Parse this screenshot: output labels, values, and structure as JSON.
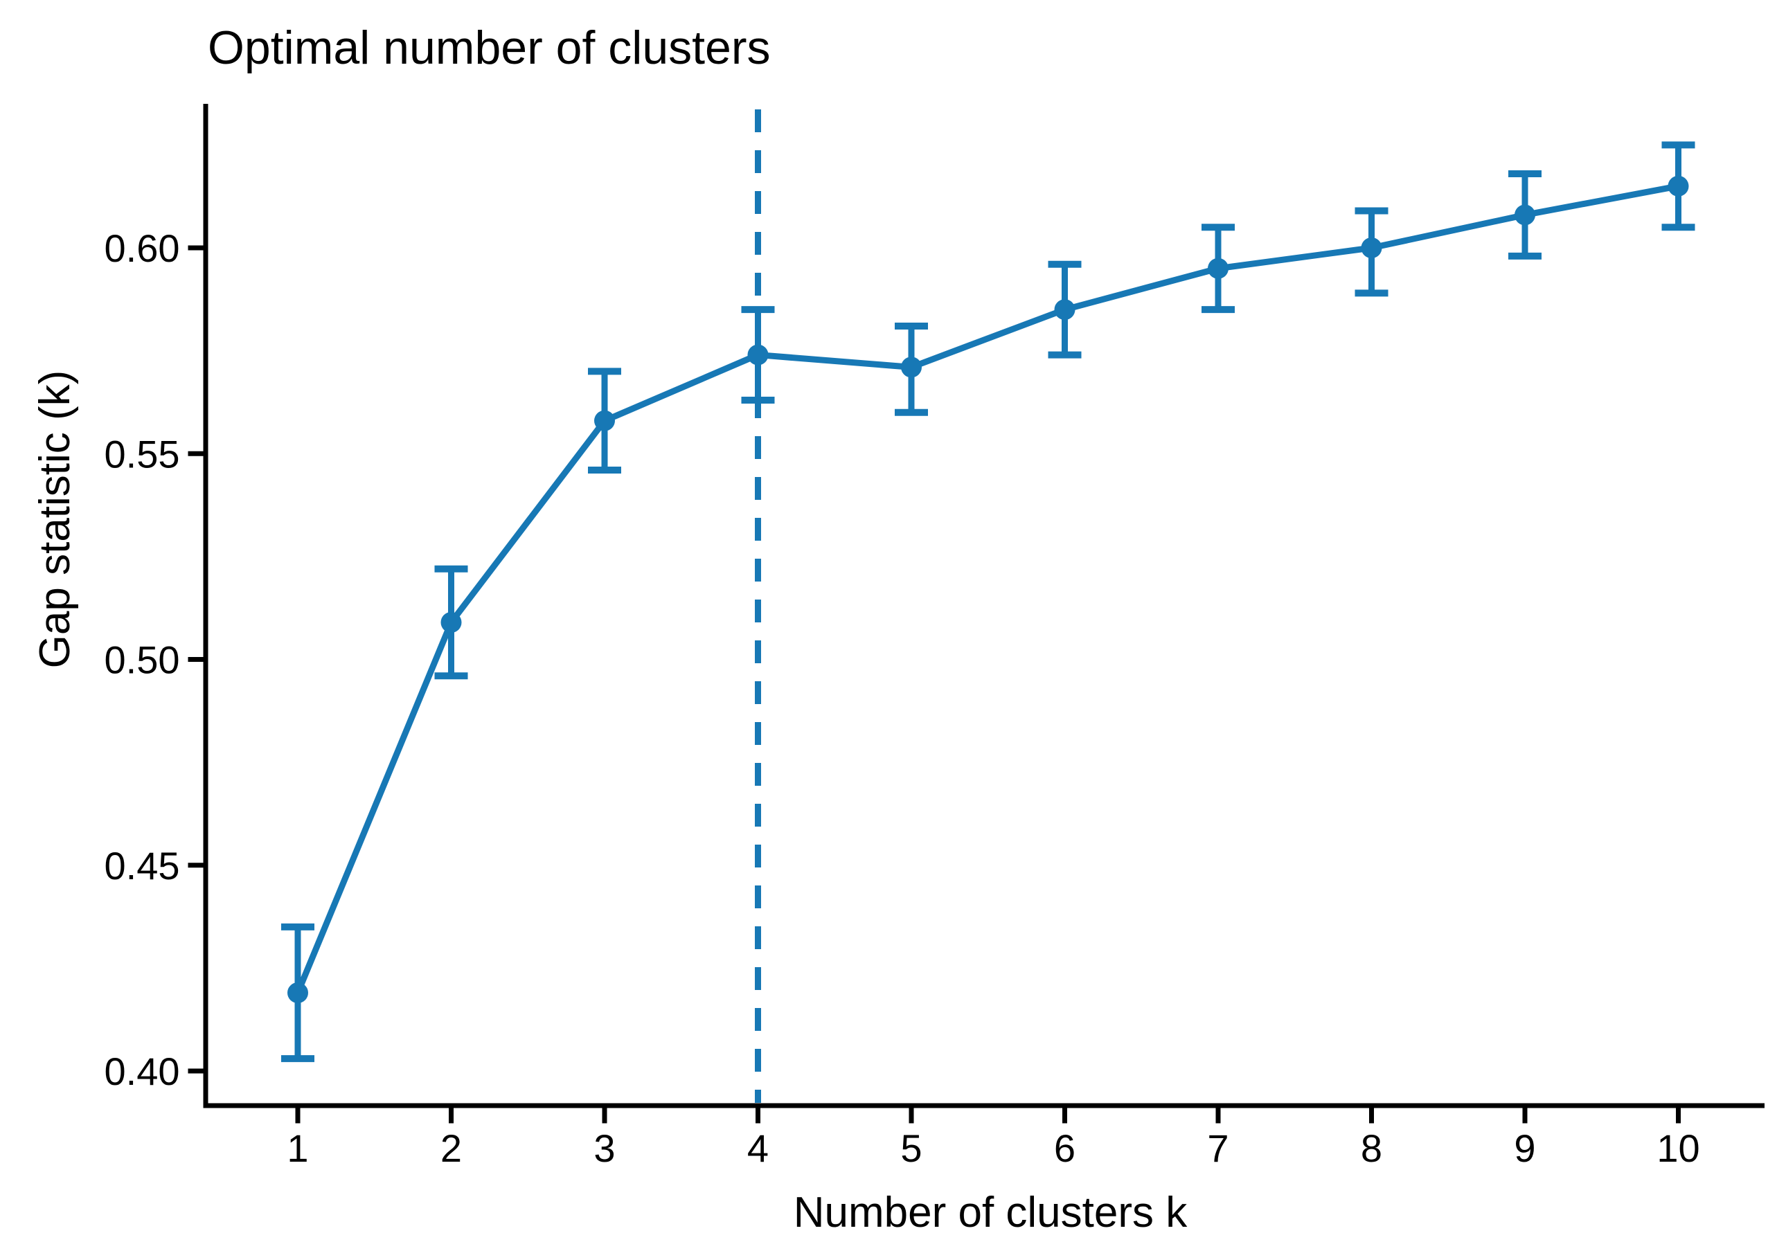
{
  "title": "Optimal number of clusters",
  "chart_data": {
    "type": "line",
    "title": "Optimal number of clusters",
    "xlabel": "Number of clusters k",
    "ylabel": "Gap statistic (k)",
    "x": [
      1,
      2,
      3,
      4,
      5,
      6,
      7,
      8,
      9,
      10
    ],
    "series": [
      {
        "name": "Gap statistic",
        "values": [
          0.419,
          0.509,
          0.558,
          0.574,
          0.571,
          0.585,
          0.595,
          0.6,
          0.608,
          0.615
        ],
        "error_upper": [
          0.435,
          0.522,
          0.57,
          0.585,
          0.581,
          0.596,
          0.605,
          0.609,
          0.618,
          0.625
        ],
        "error_lower": [
          0.403,
          0.496,
          0.546,
          0.563,
          0.56,
          0.574,
          0.585,
          0.589,
          0.598,
          0.605
        ]
      }
    ],
    "x_tick_labels": [
      "1",
      "2",
      "3",
      "4",
      "5",
      "6",
      "7",
      "8",
      "9",
      "10"
    ],
    "y_tick_values": [
      0.4,
      0.45,
      0.5,
      0.55,
      0.6
    ],
    "y_tick_labels": [
      "0.40",
      "0.45",
      "0.50",
      "0.55",
      "0.60"
    ],
    "xlim": [
      0.4,
      10.55
    ],
    "ylim": [
      0.392,
      0.635
    ],
    "optimal_k": 4,
    "grid": false,
    "legend": "none",
    "line_color": "#1778b5",
    "axis_color": "#000000",
    "marker": "circle",
    "vline_style": "dashed"
  }
}
